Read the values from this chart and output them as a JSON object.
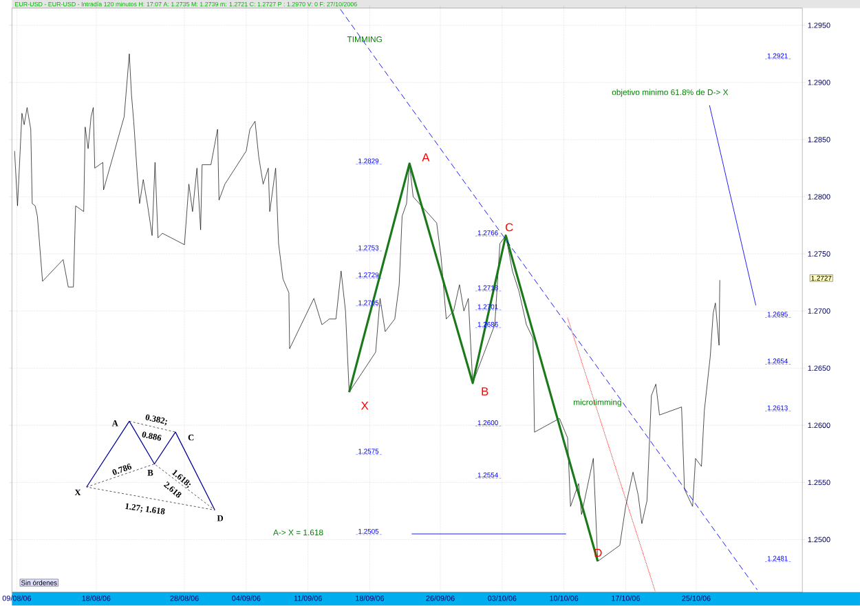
{
  "chart_data": {
    "type": "line",
    "title": "EUR-USD - EUR-USD - Intradía 120 minutos H: 17:07 A: 1.2735 M: 1.2739 m: 1.2721 C: 1.2727 P : 1.2970 V: 0 F: 27/10/2006",
    "xlim": [
      "2006-08-08T10:48",
      "2006-11-06T00:29"
    ],
    "ylim": [
      1.2454,
      1.2965
    ],
    "xticks": [
      {
        "value": "2006-08-09",
        "label": "09/08/06"
      },
      {
        "value": "2006-08-18",
        "label": "18/08/06"
      },
      {
        "value": "2006-08-28",
        "label": "28/08/06"
      },
      {
        "value": "2006-09-04",
        "label": "04/09/06"
      },
      {
        "value": "2006-09-11",
        "label": "11/09/06"
      },
      {
        "value": "2006-09-18",
        "label": "18/09/06"
      },
      {
        "value": "2006-09-26",
        "label": "26/09/06"
      },
      {
        "value": "2006-10-03",
        "label": "03/10/06"
      },
      {
        "value": "2006-10-10",
        "label": "10/10/06"
      },
      {
        "value": "2006-10-17",
        "label": "17/10/06"
      },
      {
        "value": "2006-10-25",
        "label": "25/10/06"
      }
    ],
    "yticks": [
      {
        "value": 1.25,
        "label": "1.2500"
      },
      {
        "value": 1.255,
        "label": "1.2550"
      },
      {
        "value": 1.26,
        "label": "1.2600"
      },
      {
        "value": 1.265,
        "label": "1.2650"
      },
      {
        "value": 1.27,
        "label": "1.2700"
      },
      {
        "value": 1.275,
        "label": "1.2750"
      },
      {
        "value": 1.28,
        "label": "1.2800"
      },
      {
        "value": 1.285,
        "label": "1.2850"
      },
      {
        "value": 1.29,
        "label": "1.2900"
      },
      {
        "value": 1.295,
        "label": "1.2950"
      }
    ],
    "grid": true,
    "marker": "none",
    "series": [
      {
        "color": "#000000",
        "line_style": "solid",
        "x": [
          "2006-08-08T18:00",
          "2006-08-09T02:00",
          "2006-08-09T14:00",
          "2006-08-09T20:00",
          "2006-08-10T04:00",
          "2006-08-10T14:00",
          "2006-08-10T18:00",
          "2006-08-11T02:00",
          "2006-08-11T08:00",
          "2006-08-11T22:00",
          "2006-08-14T06:00",
          "2006-08-14T20:00",
          "2006-08-15T10:00",
          "2006-08-15T16:00",
          "2006-08-16T14:00",
          "2006-08-16T18:00",
          "2006-08-17T02:00",
          "2006-08-17T10:00",
          "2006-08-17T16:00",
          "2006-08-17T20:00",
          "2006-08-18T18:00",
          "2006-08-18T20:00",
          "2006-08-21T04:00",
          "2006-08-21T18:00",
          "2006-08-22T00:00",
          "2006-08-22T06:00",
          "2006-08-22T16:00",
          "2006-08-22T22:00",
          "2006-08-23T08:00",
          "2006-08-23T20:00",
          "2006-08-24T08:00",
          "2006-08-24T16:00",
          "2006-08-25T00:00",
          "2006-08-25T12:00",
          "2006-08-28T00:00",
          "2006-08-28T12:00",
          "2006-08-28T22:00",
          "2006-08-29T10:00",
          "2006-08-29T20:00",
          "2006-08-30T00:00",
          "2006-08-31T00:00",
          "2006-08-31T18:00",
          "2006-08-31T22:00",
          "2006-09-01T14:00",
          "2006-09-04T00:00",
          "2006-09-04T10:00",
          "2006-09-05T00:00",
          "2006-09-05T10:00",
          "2006-09-05T22:00",
          "2006-09-06T12:00",
          "2006-09-06T16:00",
          "2006-09-07T08:00",
          "2006-09-07T16:00",
          "2006-09-08T04:00",
          "2006-09-08T20:00",
          "2006-09-08T22:00",
          "2006-09-11T16:00",
          "2006-09-12T14:00",
          "2006-09-13T10:00",
          "2006-09-14T04:00",
          "2006-09-14T18:00",
          "2006-09-15T06:00",
          "2006-09-15T16:00",
          "2006-09-18T16:00",
          "2006-09-19T04:00",
          "2006-09-19T18:00",
          "2006-09-20T20:00",
          "2006-09-21T08:00",
          "2006-09-21T16:00",
          "2006-09-22T04:00",
          "2006-09-22T12:00",
          "2006-09-22T22:00",
          "2006-09-25T14:00",
          "2006-09-26T02:00",
          "2006-09-26T16:00",
          "2006-09-27T12:00",
          "2006-09-28T04:00",
          "2006-09-28T16:00",
          "2006-09-29T04:00",
          "2006-09-29T16:00",
          "2006-10-02T04:00",
          "2006-10-02T18:00",
          "2006-10-03T10:00",
          "2006-10-04T04:00",
          "2006-10-04T22:00",
          "2006-10-05T18:00",
          "2006-10-06T12:00",
          "2006-10-06T16:00",
          "2006-10-09T12:00",
          "2006-10-10T10:00",
          "2006-10-10T18:00",
          "2006-10-11T16:00",
          "2006-10-12T00:00",
          "2006-10-13T08:00",
          "2006-10-13T20:00",
          "2006-10-16T08:00",
          "2006-10-17T00:00",
          "2006-10-17T20:00",
          "2006-10-18T10:00",
          "2006-10-18T20:00",
          "2006-10-19T10:00",
          "2006-10-19T22:00",
          "2006-10-20T10:00",
          "2006-10-20T20:00",
          "2006-10-23T08:00",
          "2006-10-23T16:00",
          "2006-10-24T14:00",
          "2006-10-24T22:00",
          "2006-10-25T14:00",
          "2006-10-25T22:00",
          "2006-10-26T14:00",
          "2006-10-26T22:00",
          "2006-10-27T04:00",
          "2006-10-27T14:00",
          "2006-10-27T16:00"
        ],
        "values": [
          1.284,
          1.2792,
          1.2873,
          1.2863,
          1.2878,
          1.2859,
          1.2794,
          1.2792,
          1.2783,
          1.2726,
          1.2745,
          1.2721,
          1.2721,
          1.2792,
          1.2787,
          1.2861,
          1.2842,
          1.287,
          1.2878,
          1.2825,
          1.283,
          1.2806,
          1.287,
          1.2925,
          1.2889,
          1.2866,
          1.2818,
          1.2794,
          1.2815,
          1.2792,
          1.2766,
          1.283,
          1.2764,
          1.2768,
          1.2758,
          1.2811,
          1.2787,
          1.2825,
          1.2771,
          1.2828,
          1.2828,
          1.2859,
          1.2797,
          1.2811,
          1.284,
          1.2859,
          1.2866,
          1.2835,
          1.2811,
          1.2825,
          1.2787,
          1.2825,
          1.2759,
          1.2728,
          1.2716,
          1.2667,
          1.2711,
          1.2688,
          1.2693,
          1.2693,
          1.2735,
          1.27,
          1.2629,
          1.2664,
          1.2711,
          1.2682,
          1.2693,
          1.2723,
          1.2783,
          1.2794,
          1.2829,
          1.28,
          1.2777,
          1.2747,
          1.2693,
          1.27,
          1.2723,
          1.27,
          1.2711,
          1.2637,
          1.2688,
          1.2759,
          1.2766,
          1.2735,
          1.2717,
          1.2688,
          1.2676,
          1.2594,
          1.2606,
          1.2589,
          1.2529,
          1.2549,
          1.2522,
          1.2571,
          1.2481,
          1.2495,
          1.2529,
          1.2559,
          1.2539,
          1.2514,
          1.2534,
          1.2626,
          1.2636,
          1.2609,
          1.2616,
          1.2544,
          1.2529,
          1.2571,
          1.2564,
          1.2613,
          1.266,
          1.2698,
          1.2707,
          1.267,
          1.2727
        ]
      },
      {
        "color": "#1a7a1a",
        "line_style": "solid",
        "x": [
          "2006-09-15T16:00",
          "2006-09-22T12:00",
          "2006-09-29T16:00",
          "2006-10-03T10:00",
          "2006-10-13T20:00"
        ],
        "values": [
          1.2629,
          1.2829,
          1.2637,
          1.2766,
          1.2481
        ]
      },
      {
        "color": "#0000ff",
        "line_style": "dashed",
        "x": [
          "2006-09-14T16:00",
          "2006-10-31T22:00"
        ],
        "values": [
          1.2964,
          1.2456
        ]
      },
      {
        "color": "#ff0000",
        "line_style": "dotted",
        "x": [
          "2006-10-10T10:00",
          "2006-10-20T08:00"
        ],
        "values": [
          1.2694,
          1.2455
        ]
      },
      {
        "color": "#0000ff",
        "line_style": "solid",
        "x": [
          "2006-10-26T12:00",
          "2006-10-31T18:00"
        ],
        "values": [
          1.288,
          1.2705
        ]
      },
      {
        "color": "#0000ff",
        "line_style": "solid",
        "x": [
          "2006-09-22T18:00",
          "2006-10-10T06:00"
        ],
        "values": [
          1.2505,
          1.2505
        ]
      }
    ],
    "annotations": [
      "1.2829",
      "1.2753",
      "1.2729",
      "1.2705",
      "1.2575",
      "1.2505",
      "1.2766",
      "1.2718",
      "1.2701",
      "1.2686",
      "1.2600",
      "1.2554",
      "1.2921",
      "1.2695",
      "1.2654",
      "1.2613",
      "1.2481",
      "X",
      "A",
      "B",
      "C",
      "D",
      "TIMMING",
      "objetivo minimo 61.8% de D-> X",
      "microtimming",
      "A-> X = 1.618",
      "1.2727",
      "A",
      "B",
      "C",
      "D",
      "X",
      "0.382;",
      "0.886",
      "0.786",
      "1.618;",
      "2.618",
      "1.27; 1.618",
      "Sin órdenes"
    ]
  }
}
